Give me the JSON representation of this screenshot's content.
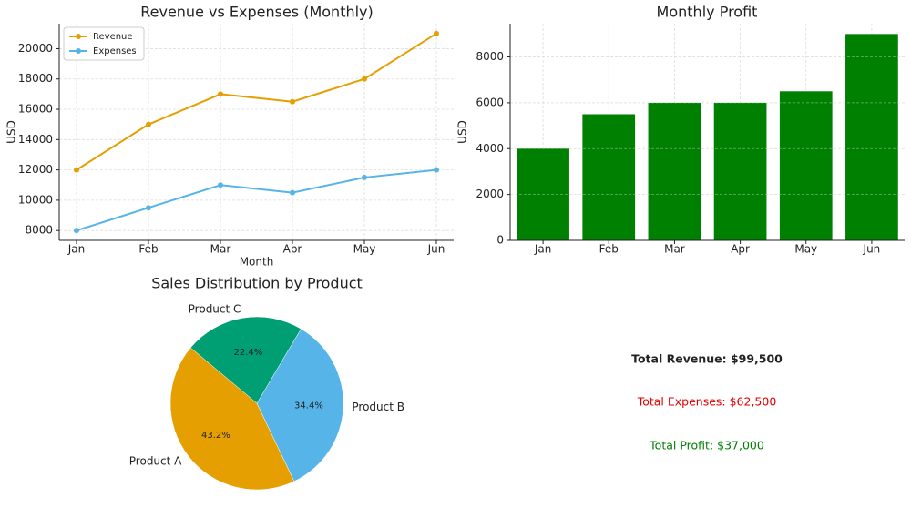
{
  "chart_data": [
    {
      "type": "line",
      "title": "Revenue vs Expenses (Monthly)",
      "x_label": "Month",
      "y_label": "USD",
      "categories": [
        "Jan",
        "Feb",
        "Mar",
        "Apr",
        "May",
        "Jun"
      ],
      "series": [
        {
          "name": "Revenue",
          "color": "#e69f00",
          "values": [
            12000,
            15000,
            17000,
            16500,
            18000,
            21000
          ]
        },
        {
          "name": "Expenses",
          "color": "#56b4e9",
          "values": [
            8000,
            9500,
            11000,
            10500,
            11500,
            12000
          ]
        }
      ],
      "ylim": [
        7350,
        21650
      ],
      "yticks": [
        8000,
        10000,
        12000,
        14000,
        16000,
        18000,
        20000
      ],
      "grid": true,
      "legend": "upper-left"
    },
    {
      "type": "bar",
      "title": "Monthly Profit",
      "y_label": "USD",
      "categories": [
        "Jan",
        "Feb",
        "Mar",
        "Apr",
        "May",
        "Jun"
      ],
      "values": [
        4000,
        5500,
        6000,
        6000,
        6500,
        9000
      ],
      "color": "#008000",
      "ylim": [
        0,
        9450
      ],
      "yticks": [
        0,
        2000,
        4000,
        6000,
        8000
      ],
      "grid": true
    },
    {
      "type": "pie",
      "title": "Sales Distribution by Product",
      "categories": [
        "Product A",
        "Product B",
        "Product C"
      ],
      "values": [
        43.2,
        34.4,
        22.4
      ],
      "value_labels": [
        "43.2%",
        "34.4%",
        "22.4%"
      ],
      "colors": [
        "#e69f00",
        "#56b4e9",
        "#009e73"
      ]
    }
  ],
  "summary": {
    "total_revenue": "Total Revenue: $99,500",
    "total_expenses": "Total Expenses: $62,500",
    "total_profit": "Total Profit: $37,000"
  }
}
